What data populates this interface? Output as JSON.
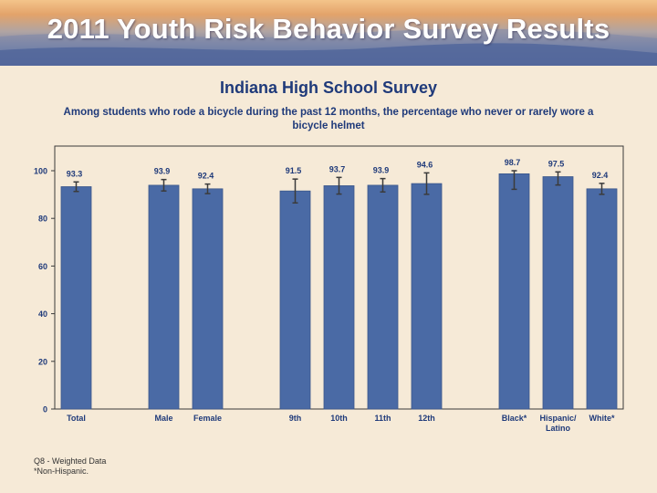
{
  "banner": {
    "title": "2011 Youth Risk Behavior Survey Results"
  },
  "subtitle": "Indiana High School Survey",
  "description": "Among students who rode a bicycle during the past 12 months, the percentage who never or rarely wore a bicycle helmet",
  "footnotes": {
    "line1": "Q8 - Weighted Data",
    "line2": "*Non-Hispanic."
  },
  "colors": {
    "bar": "#4a6aa5",
    "bar_edge": "#3a568a",
    "error_bar": "#3b3b3b",
    "plot_background": "#f6ead7",
    "text": "#1f3a7a"
  },
  "chart_data": {
    "type": "bar",
    "title": "",
    "xlabel": "",
    "ylabel": "",
    "ylim": [
      0,
      100
    ],
    "yticks": [
      0,
      20,
      40,
      60,
      80,
      100
    ],
    "grid": false,
    "legend": "none",
    "categories": [
      "Total",
      "Male",
      "Female",
      "9th",
      "10th",
      "11th",
      "12th",
      "Black*",
      "Hispanic/ Latino",
      "White*"
    ],
    "groups": [
      [
        "Total"
      ],
      [
        "Male",
        "Female"
      ],
      [
        "9th",
        "10th",
        "11th",
        "12th"
      ],
      [
        "Black*",
        "Hispanic/ Latino",
        "White*"
      ]
    ],
    "values": [
      93.3,
      93.9,
      92.4,
      91.5,
      93.7,
      93.9,
      94.6,
      98.7,
      97.5,
      92.4
    ],
    "error_bars": [
      [
        91.3,
        95.3
      ],
      [
        91.5,
        96.3
      ],
      [
        90.4,
        94.4
      ],
      [
        86.5,
        96.5
      ],
      [
        90.2,
        97.2
      ],
      [
        91.1,
        96.7
      ],
      [
        90.1,
        99.1
      ],
      [
        92.2,
        100.0
      ],
      [
        94.0,
        99.5
      ],
      [
        90.1,
        94.7
      ]
    ]
  }
}
